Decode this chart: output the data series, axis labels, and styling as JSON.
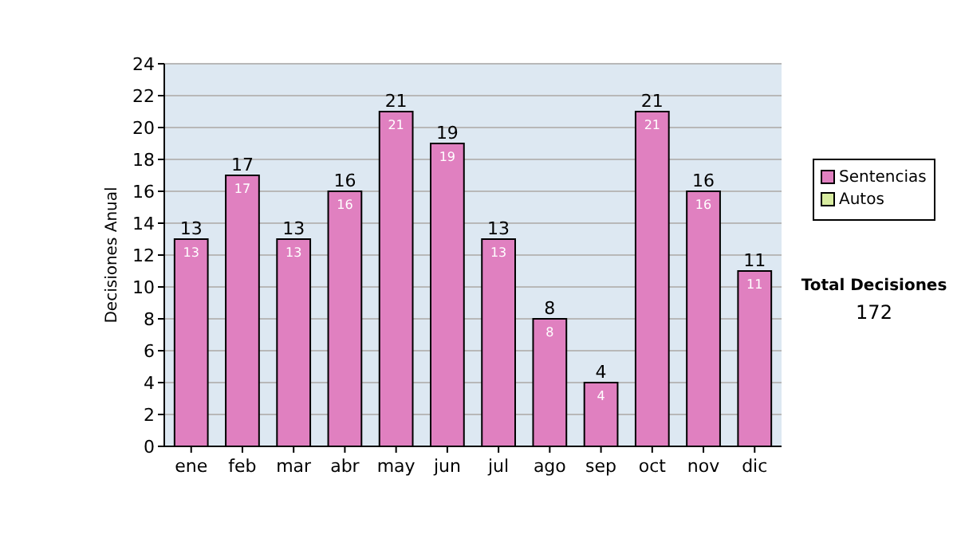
{
  "chart_data": {
    "type": "bar",
    "stacked": true,
    "ylabel": "Decisiones Anual",
    "categories": [
      "ene",
      "feb",
      "mar",
      "abr",
      "may",
      "jun",
      "jul",
      "ago",
      "sep",
      "oct",
      "nov",
      "dic"
    ],
    "series": [
      {
        "name": "Sentencias",
        "color": "#e080c0",
        "values": [
          13,
          17,
          13,
          16,
          21,
          19,
          13,
          8,
          4,
          21,
          16,
          11
        ],
        "value_labels": [
          "13",
          "17",
          "13",
          "16",
          "21",
          "19",
          "13",
          "8",
          "4",
          "21",
          "16",
          "11"
        ]
      },
      {
        "name": "Autos",
        "color": "#d8eca0",
        "values": [
          0,
          0,
          0,
          0,
          0,
          0,
          0,
          0,
          0,
          0,
          0,
          0
        ]
      }
    ],
    "totals": [
      "13",
      "17",
      "13",
      "16",
      "21",
      "19",
      "13",
      "8",
      "4",
      "21",
      "16",
      "11"
    ],
    "ylim": [
      0,
      24
    ],
    "yticks": [
      0,
      2,
      4,
      6,
      8,
      10,
      12,
      14,
      16,
      18,
      20,
      22,
      24
    ],
    "grid": "y",
    "legend": "right",
    "annotations": [
      "Total Decisiones",
      "172"
    ]
  }
}
